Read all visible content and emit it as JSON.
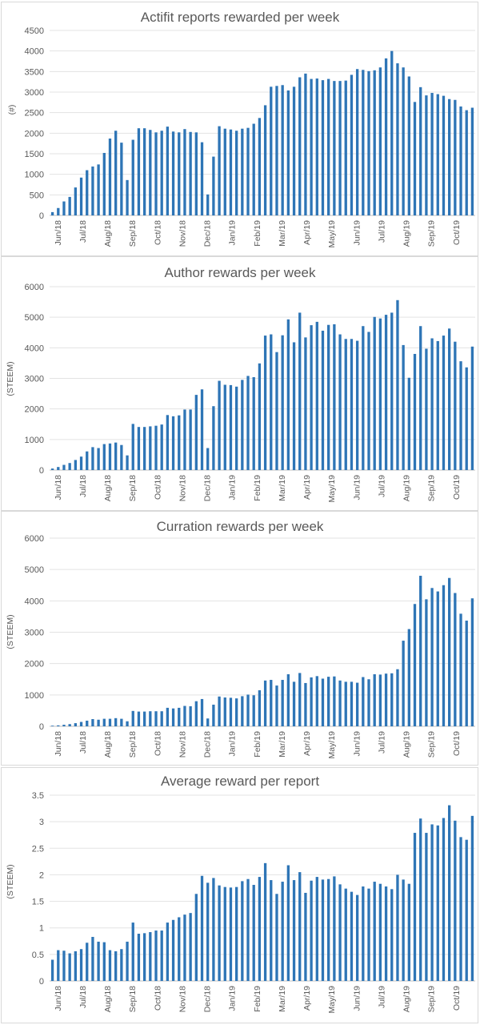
{
  "chart_data": [
    {
      "type": "bar",
      "title": "Actifit reports rewarded per week",
      "ylabel": "(#)",
      "xlabel": "",
      "ylim": [
        0,
        4500
      ],
      "yticks": [
        0,
        500,
        1000,
        1500,
        2000,
        2500,
        3000,
        3500,
        4000,
        4500
      ],
      "grid": true,
      "bar_color": "#2e75b6",
      "xtick_labels": [
        "Jun/18",
        "Jul/18",
        "Aug/18",
        "Sep/18",
        "Oct/18",
        "Nov/18",
        "Dec/18",
        "Jan/19",
        "Feb/19",
        "Mar/19",
        "Apr/19",
        "May/19",
        "Jun/19",
        "Jul/19",
        "Aug/19",
        "Sep/19",
        "Oct/19"
      ],
      "values": [
        80,
        180,
        340,
        450,
        680,
        920,
        1100,
        1190,
        1240,
        1520,
        1870,
        2060,
        1770,
        860,
        1840,
        2120,
        2120,
        2080,
        2020,
        2060,
        2160,
        2040,
        2020,
        2100,
        2030,
        2020,
        1780,
        510,
        1430,
        2170,
        2110,
        2090,
        2060,
        2110,
        2130,
        2230,
        2370,
        2680,
        3130,
        3150,
        3170,
        3040,
        3130,
        3360,
        3450,
        3320,
        3330,
        3290,
        3320,
        3270,
        3270,
        3280,
        3420,
        3560,
        3540,
        3510,
        3530,
        3600,
        3820,
        4000,
        3700,
        3600,
        3380,
        2760,
        3120,
        2920,
        2980,
        2950,
        2910,
        2830,
        2810,
        2650,
        2560,
        2620
      ]
    },
    {
      "type": "bar",
      "title": "Author rewards per week",
      "ylabel": "(STEEM)",
      "xlabel": "",
      "ylim": [
        0,
        6000
      ],
      "yticks": [
        0,
        1000,
        2000,
        3000,
        4000,
        5000,
        6000
      ],
      "grid": true,
      "bar_color": "#2e75b6",
      "xtick_labels": [
        "Jun/18",
        "Jul/18",
        "Aug/18",
        "Sep/18",
        "Oct/18",
        "Nov/18",
        "Dec/18",
        "Jan/19",
        "Feb/19",
        "Mar/19",
        "Apr/19",
        "May/19",
        "Jun/19",
        "Jul/19",
        "Aug/19",
        "Sep/19",
        "Oct/19"
      ],
      "values": [
        50,
        100,
        170,
        230,
        330,
        440,
        610,
        750,
        720,
        850,
        870,
        900,
        820,
        480,
        1510,
        1410,
        1410,
        1430,
        1450,
        1490,
        1800,
        1760,
        1790,
        1980,
        1980,
        2460,
        2640,
        720,
        2090,
        2920,
        2790,
        2780,
        2730,
        2950,
        3080,
        3040,
        3490,
        4400,
        4440,
        3860,
        4410,
        4930,
        4180,
        5150,
        4340,
        4740,
        4850,
        4560,
        4750,
        4770,
        4440,
        4290,
        4290,
        4230,
        4710,
        4520,
        5010,
        4960,
        5080,
        5150,
        5560,
        4090,
        3020,
        3800,
        4710,
        3970,
        4310,
        4220,
        4400,
        4630,
        4200,
        3560,
        3360,
        4040
      ]
    },
    {
      "type": "bar",
      "title": "Curration rewards per week",
      "ylabel": "(STEEM)",
      "xlabel": "",
      "ylim": [
        0,
        6000
      ],
      "yticks": [
        0,
        1000,
        2000,
        3000,
        4000,
        5000,
        6000
      ],
      "grid": true,
      "bar_color": "#2e75b6",
      "xtick_labels": [
        "Jun/18",
        "Jul/18",
        "Aug/18",
        "Sep/18",
        "Oct/18",
        "Nov/18",
        "Dec/18",
        "Jan/19",
        "Feb/19",
        "Mar/19",
        "Apr/19",
        "May/19",
        "Jun/19",
        "Jul/19",
        "Aug/19",
        "Sep/19",
        "Oct/19"
      ],
      "values": [
        20,
        30,
        50,
        70,
        100,
        140,
        180,
        230,
        210,
        240,
        240,
        260,
        240,
        160,
        490,
        470,
        470,
        480,
        480,
        480,
        590,
        570,
        590,
        650,
        640,
        800,
        870,
        250,
        690,
        950,
        920,
        910,
        890,
        960,
        1010,
        990,
        1150,
        1460,
        1480,
        1300,
        1480,
        1660,
        1420,
        1700,
        1380,
        1560,
        1600,
        1520,
        1580,
        1590,
        1460,
        1420,
        1420,
        1390,
        1570,
        1500,
        1660,
        1650,
        1680,
        1690,
        1820,
        2730,
        3100,
        3900,
        4800,
        4050,
        4410,
        4300,
        4500,
        4730,
        4250,
        3590,
        3370,
        4080
      ]
    },
    {
      "type": "bar",
      "title": "Average reward per report",
      "ylabel": "(STEEM)",
      "xlabel": "",
      "ylim": [
        0,
        3.5
      ],
      "yticks": [
        0,
        0.5,
        1,
        1.5,
        2,
        2.5,
        3,
        3.5
      ],
      "grid": true,
      "bar_color": "#2e75b6",
      "xtick_labels": [
        "Jun/18",
        "Jul/18",
        "Aug/18",
        "Sep/18",
        "Oct/18",
        "Nov/18",
        "Dec/18",
        "Jan/19",
        "Feb/19",
        "Mar/19",
        "Apr/19",
        "May/19",
        "Jun/19",
        "Jul/19",
        "Aug/19",
        "Sep/19",
        "Oct/19"
      ],
      "values": [
        0.4,
        0.58,
        0.57,
        0.52,
        0.56,
        0.6,
        0.72,
        0.83,
        0.74,
        0.73,
        0.58,
        0.56,
        0.6,
        0.74,
        1.1,
        0.89,
        0.9,
        0.92,
        0.95,
        0.95,
        1.1,
        1.15,
        1.2,
        1.25,
        1.28,
        1.64,
        1.98,
        1.85,
        1.94,
        1.8,
        1.77,
        1.76,
        1.77,
        1.88,
        1.92,
        1.81,
        1.96,
        2.22,
        1.9,
        1.64,
        1.87,
        2.18,
        1.9,
        2.05,
        1.66,
        1.89,
        1.96,
        1.91,
        1.92,
        1.97,
        1.82,
        1.74,
        1.68,
        1.62,
        1.78,
        1.74,
        1.87,
        1.83,
        1.78,
        1.73,
        2.0,
        1.91,
        1.83,
        2.79,
        3.06,
        2.79,
        2.95,
        2.93,
        3.07,
        3.31,
        3.02,
        2.71,
        2.66,
        3.11
      ]
    }
  ]
}
